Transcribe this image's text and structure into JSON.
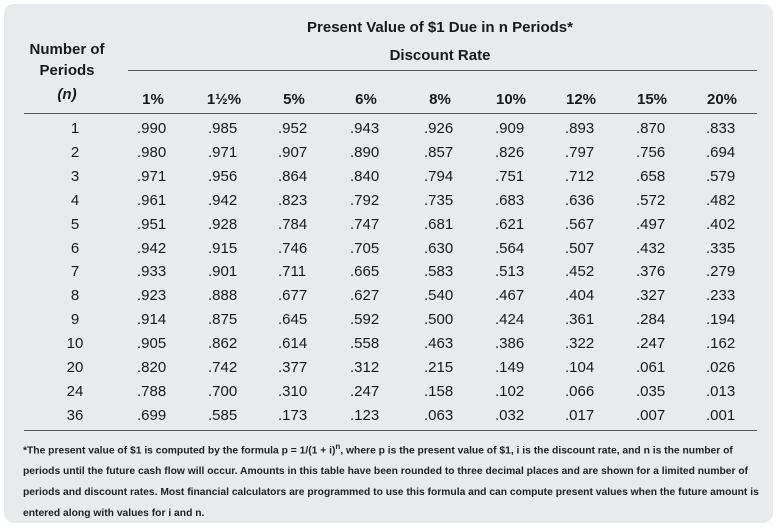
{
  "table": {
    "title": "Present Value of $1 Due in n Periods*",
    "subtitle": "Discount Rate",
    "row_header": {
      "line1": "Number of",
      "line2": "Periods",
      "line3": "(n)"
    },
    "columns": [
      "1%",
      "1½%",
      "5%",
      "6%",
      "8%",
      "10%",
      "12%",
      "15%",
      "20%"
    ],
    "rows": [
      {
        "n": "1",
        "values": [
          ".990",
          ".985",
          ".952",
          ".943",
          ".926",
          ".909",
          ".893",
          ".870",
          ".833"
        ]
      },
      {
        "n": "2",
        "values": [
          ".980",
          ".971",
          ".907",
          ".890",
          ".857",
          ".826",
          ".797",
          ".756",
          ".694"
        ]
      },
      {
        "n": "3",
        "values": [
          ".971",
          ".956",
          ".864",
          ".840",
          ".794",
          ".751",
          ".712",
          ".658",
          ".579"
        ]
      },
      {
        "n": "4",
        "values": [
          ".961",
          ".942",
          ".823",
          ".792",
          ".735",
          ".683",
          ".636",
          ".572",
          ".482"
        ]
      },
      {
        "n": "5",
        "values": [
          ".951",
          ".928",
          ".784",
          ".747",
          ".681",
          ".621",
          ".567",
          ".497",
          ".402"
        ]
      },
      {
        "n": "6",
        "values": [
          ".942",
          ".915",
          ".746",
          ".705",
          ".630",
          ".564",
          ".507",
          ".432",
          ".335"
        ]
      },
      {
        "n": "7",
        "values": [
          ".933",
          ".901",
          ".711",
          ".665",
          ".583",
          ".513",
          ".452",
          ".376",
          ".279"
        ]
      },
      {
        "n": "8",
        "values": [
          ".923",
          ".888",
          ".677",
          ".627",
          ".540",
          ".467",
          ".404",
          ".327",
          ".233"
        ]
      },
      {
        "n": "9",
        "values": [
          ".914",
          ".875",
          ".645",
          ".592",
          ".500",
          ".424",
          ".361",
          ".284",
          ".194"
        ]
      },
      {
        "n": "10",
        "values": [
          ".905",
          ".862",
          ".614",
          ".558",
          ".463",
          ".386",
          ".322",
          ".247",
          ".162"
        ]
      },
      {
        "n": "20",
        "values": [
          ".820",
          ".742",
          ".377",
          ".312",
          ".215",
          ".149",
          ".104",
          ".061",
          ".026"
        ]
      },
      {
        "n": "24",
        "values": [
          ".788",
          ".700",
          ".310",
          ".247",
          ".158",
          ".102",
          ".066",
          ".035",
          ".013"
        ]
      },
      {
        "n": "36",
        "values": [
          ".699",
          ".585",
          ".173",
          ".123",
          ".063",
          ".032",
          ".017",
          ".007",
          ".001"
        ]
      }
    ],
    "footnote": {
      "p1": "*The present value of $1 is computed by the formula p = 1/(1 + i)",
      "sup": "n",
      "p2": ", where p is the present value of $1, i is the discount rate, and n is the number of periods until the future cash flow will occur. Amounts in this table have been rounded to three decimal places and are shown for a limited number of periods and discount rates. Most financial calculators are programmed to use this formula and can compute present values when the future amount is entered along with values for i and n."
    }
  }
}
